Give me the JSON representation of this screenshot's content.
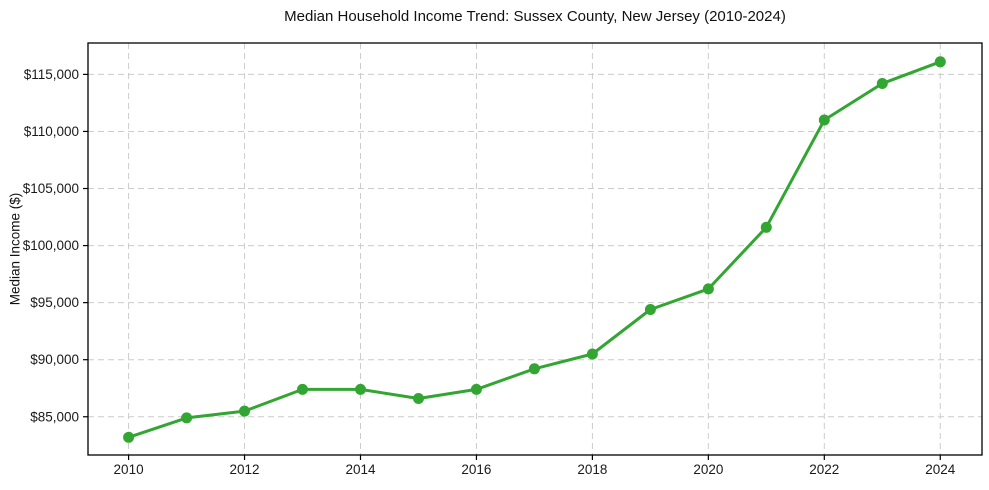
{
  "figure": {
    "title": "Median Household Income Trend: Sussex County, New Jersey (2010-2024)",
    "y_axis_label": "Median Income ($)"
  },
  "chart_data": {
    "type": "line",
    "title": "Median Household Income Trend: Sussex County, New Jersey (2010-2024)",
    "xlabel": "",
    "ylabel": "Median Income ($)",
    "x": [
      2010,
      2011,
      2012,
      2013,
      2014,
      2015,
      2016,
      2017,
      2018,
      2019,
      2020,
      2021,
      2022,
      2023,
      2024
    ],
    "values": [
      83200,
      84900,
      85500,
      87400,
      87400,
      86600,
      87400,
      89200,
      90500,
      94400,
      96200,
      101600,
      111000,
      114200,
      116100
    ],
    "x_ticks": [
      2010,
      2012,
      2014,
      2016,
      2018,
      2020,
      2022,
      2024
    ],
    "x_tick_labels": [
      "2010",
      "2012",
      "2014",
      "2016",
      "2018",
      "2020",
      "2022",
      "2024"
    ],
    "y_ticks": [
      85000,
      90000,
      95000,
      100000,
      105000,
      110000,
      115000
    ],
    "y_tick_labels": [
      "$85,000",
      "$90,000",
      "$95,000",
      "$100,000",
      "$105,000",
      "$110,000",
      "$115,000"
    ],
    "xlim": [
      2009.3,
      2024.72
    ],
    "ylim": [
      81650,
      117750
    ],
    "grid": true,
    "legend": false,
    "line_color": "#33a532",
    "grid_color": "#cccccc",
    "marker": "circle"
  }
}
